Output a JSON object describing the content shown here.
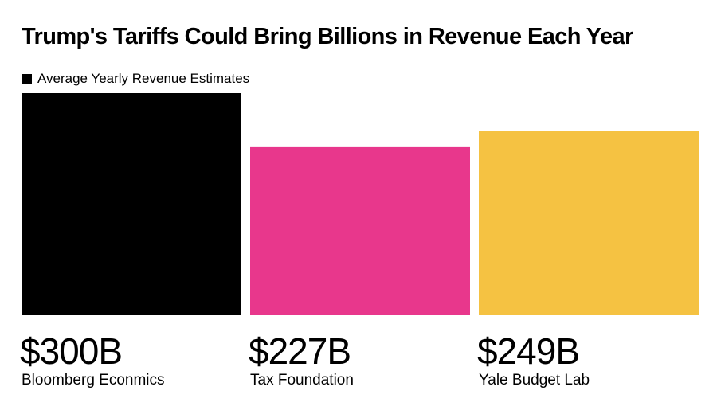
{
  "chart_data": {
    "type": "bar",
    "title": "Trump's Tariffs Could Bring Billions in Revenue Each Year",
    "legend": [
      "Average Yearly Revenue Estimates"
    ],
    "legend_placement": "top-left",
    "categories": [
      "Bloomberg Econmics",
      "Tax Foundation",
      "Yale Budget Lab"
    ],
    "values": [
      300,
      227,
      249
    ],
    "value_labels": [
      "$300B",
      "$227B",
      "$249B"
    ],
    "colors": [
      "#000000",
      "#e8378c",
      "#f5c242"
    ],
    "unit": "billions of dollars",
    "ylim": [
      0,
      300
    ],
    "grid": false,
    "xlabel": "",
    "ylabel": ""
  }
}
